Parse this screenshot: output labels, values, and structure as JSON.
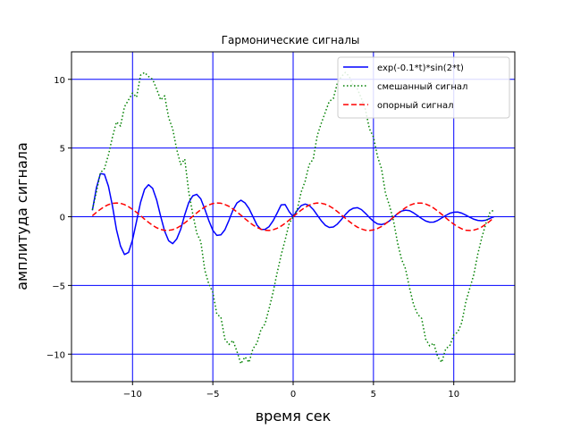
{
  "chart_data": {
    "type": "line",
    "title": "Гармонические сигналы",
    "xlabel": "время сек",
    "ylabel": "амплитуда сигнала",
    "xlim": [
      -13.8,
      13.8
    ],
    "ylim": [
      -12,
      12
    ],
    "xticks": [
      -10,
      -5,
      0,
      5,
      10
    ],
    "xtick_labels": [
      "−10",
      "−5",
      "0",
      "5",
      "10"
    ],
    "yticks": [
      -10,
      -5,
      0,
      5,
      10
    ],
    "ytick_labels": [
      "−10",
      "−5",
      "0",
      "5",
      "10"
    ],
    "grid": true,
    "grid_color": "#0000ff",
    "legend_position": "top-right",
    "series": [
      {
        "name": "exp(-0.1*t)*sin(2*t)",
        "color": "#0000ff",
        "style": "solid",
        "x": [
          -12.5,
          -12.25,
          -12.0,
          -11.75,
          -11.5,
          -11.25,
          -11.0,
          -10.75,
          -10.5,
          -10.25,
          -10.0,
          -9.75,
          -9.5,
          -9.25,
          -9.0,
          -8.75,
          -8.5,
          -8.25,
          -8.0,
          -7.75,
          -7.5,
          -7.25,
          -7.0,
          -6.75,
          -6.5,
          -6.25,
          -6.0,
          -5.75,
          -5.5,
          -5.25,
          -5.0,
          -4.75,
          -4.5,
          -4.25,
          -4.0,
          -3.75,
          -3.5,
          -3.25,
          -3.0,
          -2.75,
          -2.5,
          -2.25,
          -2.0,
          -1.75,
          -1.5,
          -1.25,
          -1.0,
          -0.75,
          -0.5,
          -0.25,
          0.0,
          0.25,
          0.5,
          0.75,
          1.0,
          1.25,
          1.5,
          1.75,
          2.0,
          2.25,
          2.5,
          2.75,
          3.0,
          3.25,
          3.5,
          3.75,
          4.0,
          4.25,
          4.5,
          4.75,
          5.0,
          5.25,
          5.5,
          5.75,
          6.0,
          6.25,
          6.5,
          6.75,
          7.0,
          7.25,
          7.5,
          7.75,
          8.0,
          8.25,
          8.5,
          8.75,
          9.0,
          9.25,
          9.5,
          9.75,
          10.0,
          10.25,
          10.5,
          10.75,
          11.0,
          11.25,
          11.5,
          11.75,
          12.0,
          12.25,
          12.5
        ],
        "y": [
          0.46,
          2.1,
          3.14,
          3.09,
          2.22,
          0.78,
          -0.94,
          -2.13,
          -2.75,
          -2.6,
          -1.68,
          -0.33,
          1.05,
          2.0,
          2.33,
          2.07,
          1.23,
          0.04,
          -1.05,
          -1.75,
          -1.96,
          -1.62,
          -0.91,
          0.14,
          1.03,
          1.52,
          1.63,
          1.3,
          0.55,
          -0.28,
          -0.99,
          -1.36,
          -1.32,
          -0.95,
          -0.27,
          0.47,
          1.0,
          1.2,
          1.01,
          0.6,
          0.0,
          -0.61,
          -0.93,
          -0.92,
          -0.72,
          -0.3,
          0.26,
          0.86,
          0.89,
          0.37,
          0.0,
          0.46,
          0.81,
          0.92,
          0.82,
          0.53,
          0.12,
          -0.29,
          -0.62,
          -0.78,
          -0.75,
          -0.54,
          -0.21,
          0.16,
          0.46,
          0.62,
          0.66,
          0.52,
          0.25,
          -0.06,
          -0.33,
          -0.52,
          -0.57,
          -0.49,
          -0.3,
          -0.04,
          0.22,
          0.41,
          0.48,
          0.44,
          0.28,
          0.07,
          -0.13,
          -0.31,
          -0.4,
          -0.39,
          -0.27,
          -0.09,
          0.09,
          0.25,
          0.33,
          0.34,
          0.26,
          0.12,
          -0.04,
          -0.18,
          -0.27,
          -0.29,
          -0.25,
          -0.13,
          0.0
        ]
      },
      {
        "name": "смешанный сигнал",
        "color": "#008000",
        "style": "dotted",
        "x": [
          -12.5,
          -12.25,
          -12.0,
          -11.75,
          -11.5,
          -11.25,
          -11.0,
          -10.75,
          -10.5,
          -10.25,
          -10.0,
          -9.75,
          -9.5,
          -9.25,
          -9.0,
          -8.75,
          -8.5,
          -8.25,
          -8.0,
          -7.75,
          -7.5,
          -7.25,
          -7.0,
          -6.75,
          -6.5,
          -6.25,
          -6.0,
          -5.75,
          -5.5,
          -5.25,
          -5.0,
          -4.75,
          -4.5,
          -4.25,
          -4.0,
          -3.75,
          -3.5,
          -3.25,
          -3.0,
          -2.75,
          -2.5,
          -2.25,
          -2.0,
          -1.75,
          -1.5,
          -1.25,
          -1.0,
          -0.75,
          -0.5,
          -0.25,
          0.0,
          0.25,
          0.5,
          0.75,
          1.0,
          1.25,
          1.5,
          1.75,
          2.0,
          2.25,
          2.5,
          2.75,
          3.0,
          3.25,
          3.5,
          3.75,
          4.0,
          4.25,
          4.5,
          4.75,
          5.0,
          5.25,
          5.5,
          5.75,
          6.0,
          6.25,
          6.5,
          6.75,
          7.0,
          7.25,
          7.5,
          7.75,
          8.0,
          8.25,
          8.5,
          8.75,
          9.0,
          9.25,
          9.5,
          9.75,
          10.0,
          10.25,
          10.5,
          10.75,
          11.0,
          11.25,
          11.5,
          11.75,
          12.0,
          12.25,
          12.5
        ],
        "y": [
          0.5,
          1.8,
          3.2,
          3.5,
          4.5,
          5.8,
          6.9,
          6.6,
          8.0,
          8.5,
          9.0,
          8.7,
          10.3,
          10.5,
          10.2,
          10.0,
          9.3,
          8.5,
          8.8,
          7.2,
          6.4,
          4.9,
          3.8,
          4.2,
          1.8,
          0.2,
          -1.2,
          -1.8,
          -3.9,
          -4.9,
          -5.5,
          -7.1,
          -7.3,
          -8.9,
          -9.3,
          -9.0,
          -9.8,
          -10.7,
          -10.2,
          -10.6,
          -9.6,
          -9.2,
          -8.2,
          -7.8,
          -6.7,
          -5.5,
          -4.1,
          -2.8,
          -1.7,
          -0.5,
          0.0,
          0.5,
          1.8,
          2.6,
          3.8,
          4.2,
          5.9,
          6.8,
          7.6,
          8.4,
          8.6,
          9.7,
          10.2,
          10.5,
          10.2,
          9.5,
          9.3,
          8.6,
          7.8,
          6.4,
          5.8,
          4.4,
          3.5,
          1.7,
          0.8,
          -0.3,
          -1.9,
          -3.1,
          -3.8,
          -5.2,
          -6.4,
          -7.1,
          -7.4,
          -8.9,
          -9.4,
          -9.2,
          -10.2,
          -10.6,
          -9.6,
          -9.4,
          -8.6,
          -8.4,
          -7.7,
          -6.2,
          -5.2,
          -4.2,
          -2.7,
          -1.5,
          -0.5,
          0.3,
          0.5
        ]
      },
      {
        "name": "опорный сигнал",
        "color": "#ff0000",
        "style": "dashed",
        "x": [
          -12.5,
          -12.25,
          -12.0,
          -11.75,
          -11.5,
          -11.25,
          -11.0,
          -10.75,
          -10.5,
          -10.25,
          -10.0,
          -9.75,
          -9.5,
          -9.25,
          -9.0,
          -8.75,
          -8.5,
          -8.25,
          -8.0,
          -7.75,
          -7.5,
          -7.25,
          -7.0,
          -6.75,
          -6.5,
          -6.25,
          -6.0,
          -5.75,
          -5.5,
          -5.25,
          -5.0,
          -4.75,
          -4.5,
          -4.25,
          -4.0,
          -3.75,
          -3.5,
          -3.25,
          -3.0,
          -2.75,
          -2.5,
          -2.25,
          -2.0,
          -1.75,
          -1.5,
          -1.25,
          -1.0,
          -0.75,
          -0.5,
          -0.25,
          0.0,
          0.25,
          0.5,
          0.75,
          1.0,
          1.25,
          1.5,
          1.75,
          2.0,
          2.25,
          2.5,
          2.75,
          3.0,
          3.25,
          3.5,
          3.75,
          4.0,
          4.25,
          4.5,
          4.75,
          5.0,
          5.25,
          5.5,
          5.75,
          6.0,
          6.25,
          6.5,
          6.75,
          7.0,
          7.25,
          7.5,
          7.75,
          8.0,
          8.25,
          8.5,
          8.75,
          9.0,
          9.25,
          9.5,
          9.75,
          10.0,
          10.25,
          10.5,
          10.75,
          11.0,
          11.25,
          11.5,
          11.75,
          12.0,
          12.25,
          12.5
        ],
        "y": [
          0.07,
          0.32,
          0.54,
          0.74,
          0.88,
          0.97,
          1.0,
          0.98,
          0.88,
          0.73,
          0.54,
          0.32,
          0.08,
          -0.18,
          -0.41,
          -0.63,
          -0.8,
          -0.92,
          -0.99,
          -0.99,
          -0.94,
          -0.83,
          -0.66,
          -0.45,
          -0.22,
          0.03,
          0.28,
          0.51,
          0.71,
          0.86,
          0.96,
          1.0,
          0.98,
          0.89,
          0.76,
          0.57,
          0.35,
          0.11,
          -0.14,
          -0.38,
          -0.6,
          -0.78,
          -0.91,
          -0.98,
          -1.0,
          -0.95,
          -0.84,
          -0.68,
          -0.48,
          -0.25,
          0.0,
          0.25,
          0.48,
          0.68,
          0.84,
          0.95,
          1.0,
          0.98,
          0.91,
          0.78,
          0.6,
          0.38,
          0.14,
          -0.11,
          -0.35,
          -0.57,
          -0.76,
          -0.89,
          -0.98,
          -1.0,
          -0.96,
          -0.86,
          -0.71,
          -0.51,
          -0.28,
          -0.03,
          0.22,
          0.45,
          0.66,
          0.83,
          0.94,
          0.99,
          0.99,
          0.92,
          0.8,
          0.63,
          0.41,
          0.18,
          -0.08,
          -0.32,
          -0.54,
          -0.73,
          -0.88,
          -0.98,
          -1.0,
          -0.97,
          -0.88,
          -0.74,
          -0.54,
          -0.32,
          -0.07
        ]
      }
    ]
  }
}
